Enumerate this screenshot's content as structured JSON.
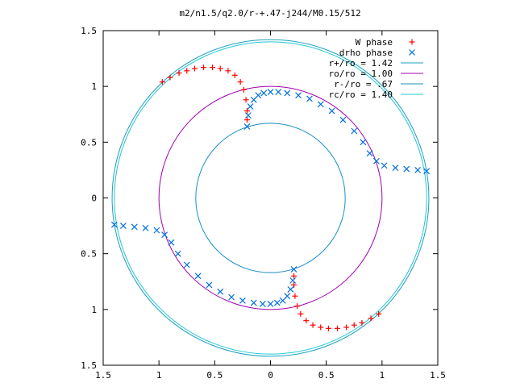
{
  "chart_data": {
    "type": "scatter",
    "title": "m2/n1.5/q2.0/r-+.47-j244/M0.15/512",
    "xlim": [
      -1.5,
      1.5
    ],
    "ylim": [
      -1.5,
      1.5
    ],
    "x_ticks": [
      -1.5,
      -1,
      -0.5,
      0,
      0.5,
      1,
      1.5
    ],
    "y_ticks": [
      -1.5,
      -1,
      -0.5,
      0,
      0.5,
      1,
      1.5
    ],
    "x_tick_labels": [
      "1.5",
      "1",
      "0.5",
      "0",
      "0.5",
      "1",
      "1.5"
    ],
    "y_tick_labels": [
      "1.5",
      "1",
      "0.5",
      "0",
      "0.5",
      "1",
      "1.5"
    ],
    "legend_position": "top-right",
    "grid": false,
    "circles": [
      {
        "name": "r+/ro = 1.42",
        "radius": 1.42,
        "color": "#1aa0c0"
      },
      {
        "name": "ro/ro = 1.00",
        "radius": 1.0,
        "color": "#a000b0"
      },
      {
        "name": "r-/ro = .67",
        "radius": 0.67,
        "color": "#1a8fbf"
      },
      {
        "name": "rc/ro = 1.40",
        "radius": 1.4,
        "color": "#20c8d0"
      }
    ],
    "series": [
      {
        "name": "W phase",
        "marker": "plus",
        "color": "#ff0000",
        "points": [
          [
            -0.97,
            1.04
          ],
          [
            -0.9,
            1.08
          ],
          [
            -0.82,
            1.12
          ],
          [
            -0.75,
            1.14
          ],
          [
            -0.68,
            1.16
          ],
          [
            -0.6,
            1.17
          ],
          [
            -0.52,
            1.17
          ],
          [
            -0.45,
            1.16
          ],
          [
            -0.38,
            1.14
          ],
          [
            -0.32,
            1.1
          ],
          [
            -0.27,
            1.04
          ],
          [
            -0.24,
            0.97
          ],
          [
            -0.22,
            0.88
          ],
          [
            -0.21,
            0.78
          ],
          [
            -0.21,
            0.7
          ],
          [
            0.97,
            -1.04
          ],
          [
            0.9,
            -1.08
          ],
          [
            0.82,
            -1.12
          ],
          [
            0.75,
            -1.14
          ],
          [
            0.68,
            -1.16
          ],
          [
            0.6,
            -1.17
          ],
          [
            0.52,
            -1.17
          ],
          [
            0.45,
            -1.16
          ],
          [
            0.38,
            -1.14
          ],
          [
            0.32,
            -1.1
          ],
          [
            0.27,
            -1.04
          ],
          [
            0.24,
            -0.97
          ],
          [
            0.22,
            -0.88
          ],
          [
            0.21,
            -0.78
          ],
          [
            0.21,
            -0.7
          ]
        ]
      },
      {
        "name": "drho phase",
        "marker": "cross",
        "color": "#0070e0",
        "points": [
          [
            -0.21,
            0.64
          ],
          [
            -0.2,
            0.74
          ],
          [
            -0.18,
            0.82
          ],
          [
            -0.15,
            0.88
          ],
          [
            -0.11,
            0.92
          ],
          [
            -0.06,
            0.94
          ],
          [
            0.0,
            0.95
          ],
          [
            0.07,
            0.95
          ],
          [
            0.15,
            0.94
          ],
          [
            0.25,
            0.92
          ],
          [
            0.35,
            0.89
          ],
          [
            0.45,
            0.84
          ],
          [
            0.55,
            0.78
          ],
          [
            0.65,
            0.7
          ],
          [
            0.75,
            0.6
          ],
          [
            0.83,
            0.5
          ],
          [
            0.89,
            0.4
          ],
          [
            0.95,
            0.33
          ],
          [
            1.02,
            0.29
          ],
          [
            1.12,
            0.27
          ],
          [
            1.22,
            0.26
          ],
          [
            1.32,
            0.25
          ],
          [
            1.4,
            0.24
          ],
          [
            0.21,
            -0.64
          ],
          [
            0.2,
            -0.74
          ],
          [
            0.18,
            -0.82
          ],
          [
            0.15,
            -0.88
          ],
          [
            0.11,
            -0.92
          ],
          [
            0.06,
            -0.94
          ],
          [
            0.0,
            -0.95
          ],
          [
            -0.07,
            -0.95
          ],
          [
            -0.15,
            -0.94
          ],
          [
            -0.25,
            -0.92
          ],
          [
            -0.35,
            -0.89
          ],
          [
            -0.45,
            -0.84
          ],
          [
            -0.55,
            -0.78
          ],
          [
            -0.65,
            -0.7
          ],
          [
            -0.75,
            -0.6
          ],
          [
            -0.83,
            -0.5
          ],
          [
            -0.89,
            -0.4
          ],
          [
            -0.95,
            -0.33
          ],
          [
            -1.02,
            -0.29
          ],
          [
            -1.12,
            -0.27
          ],
          [
            -1.22,
            -0.26
          ],
          [
            -1.32,
            -0.25
          ],
          [
            -1.4,
            -0.24
          ]
        ]
      }
    ]
  }
}
